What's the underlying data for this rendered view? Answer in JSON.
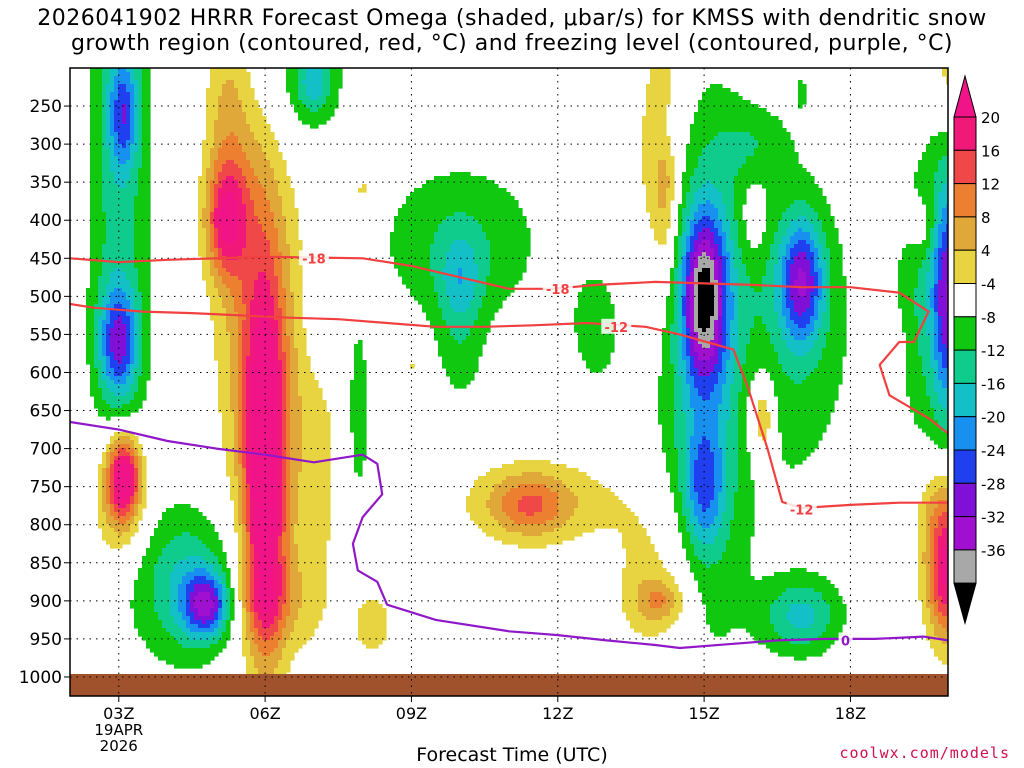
{
  "title_line1": "2026041902 HRRR Forecast Omega (shaded, μbar/s) for KMSS with dendritic snow",
  "title_line2": "growth region (contoured, red, °C) and freezing level (contoured, purple, °C)",
  "credit": "coolwx.com/models",
  "chart_data": {
    "type": "heatmap",
    "title": "2026041902 HRRR Forecast Omega (shaded, μbar/s) for KMSS with dendritic snow growth region (contoured, red, °C) and freezing level (contoured, purple, °C)",
    "xlabel": "Forecast Time (UTC)",
    "x_range_hours_utc": [
      2,
      20
    ],
    "x_ticks": [
      {
        "hour": 3,
        "label": "03Z",
        "sub": [
          "19APR",
          "2026"
        ]
      },
      {
        "hour": 6,
        "label": "06Z"
      },
      {
        "hour": 9,
        "label": "09Z"
      },
      {
        "hour": 12,
        "label": "12Z"
      },
      {
        "hour": 15,
        "label": "15Z"
      },
      {
        "hour": 18,
        "label": "18Z"
      }
    ],
    "y_axis": "pressure (hPa), reversed",
    "y_range": [
      1025,
      200
    ],
    "y_ticks": [
      250,
      300,
      350,
      400,
      450,
      500,
      550,
      600,
      650,
      700,
      750,
      800,
      850,
      900,
      950,
      1000
    ],
    "grid": true,
    "colorbar": {
      "labels": [
        "20",
        "16",
        "12",
        "8",
        "4",
        "-4",
        "-8",
        "-12",
        "-16",
        "-20",
        "-24",
        "-28",
        "-32",
        "-36"
      ],
      "bins": [
        {
          "lo": 24,
          "hi": 99,
          "color": "#f01488"
        },
        {
          "lo": 20,
          "hi": 24,
          "color": "#f01878"
        },
        {
          "lo": 16,
          "hi": 20,
          "color": "#f04848"
        },
        {
          "lo": 12,
          "hi": 16,
          "color": "#ec8030"
        },
        {
          "lo": 8,
          "hi": 12,
          "color": "#e0a838"
        },
        {
          "lo": 4,
          "hi": 8,
          "color": "#e8d440"
        },
        {
          "lo": -4,
          "hi": 4,
          "color": "#ffffff"
        },
        {
          "lo": -8,
          "hi": -4,
          "color": "#10c810"
        },
        {
          "lo": -12,
          "hi": -8,
          "color": "#10cc8c"
        },
        {
          "lo": -16,
          "hi": -12,
          "color": "#14c0c8"
        },
        {
          "lo": -20,
          "hi": -16,
          "color": "#1890f0"
        },
        {
          "lo": -24,
          "hi": -20,
          "color": "#2040f0"
        },
        {
          "lo": -28,
          "hi": -24,
          "color": "#8010d8"
        },
        {
          "lo": -32,
          "hi": -28,
          "color": "#a010d0"
        },
        {
          "lo": -36,
          "hi": -32,
          "color": "#a8a8a8"
        },
        {
          "lo": -99,
          "hi": -36,
          "color": "#000000"
        }
      ]
    },
    "omega_features": [
      {
        "hour": 3.1,
        "p": 735,
        "dh": 0.35,
        "dp": 55,
        "amp": 26
      },
      {
        "hour": 3.0,
        "p": 780,
        "dh": 0.55,
        "dp": 80,
        "amp": 10
      },
      {
        "hour": 3.0,
        "p": 560,
        "dh": 0.4,
        "dp": 70,
        "amp": -20
      },
      {
        "hour": 3.0,
        "p": 330,
        "dh": 0.65,
        "dp": 420,
        "amp": -10
      },
      {
        "hour": 3.1,
        "p": 260,
        "dh": 0.3,
        "dp": 70,
        "amp": -15
      },
      {
        "hour": 4.4,
        "p": 880,
        "dh": 1.0,
        "dp": 100,
        "amp": -13
      },
      {
        "hour": 4.8,
        "p": 905,
        "dh": 0.45,
        "dp": 40,
        "amp": -22
      },
      {
        "hour": 6.0,
        "p": 730,
        "dh": 0.42,
        "dp": 230,
        "amp": 30
      },
      {
        "hour": 6.1,
        "p": 900,
        "dh": 0.8,
        "dp": 60,
        "amp": 8
      },
      {
        "hour": 5.8,
        "p": 470,
        "dh": 0.8,
        "dp": 320,
        "amp": 12
      },
      {
        "hour": 5.2,
        "p": 400,
        "dh": 0.4,
        "dp": 70,
        "amp": 18
      },
      {
        "hour": 5.2,
        "p": 260,
        "dh": 0.45,
        "dp": 160,
        "amp": 7
      },
      {
        "hour": 7.0,
        "p": 700,
        "dh": 0.6,
        "dp": 250,
        "amp": 6
      },
      {
        "hour": 8.2,
        "p": 930,
        "dh": 0.5,
        "dp": 50,
        "amp": 6
      },
      {
        "hour": 8.0,
        "p": 360,
        "dh": 0.2,
        "dp": 25,
        "amp": 6
      },
      {
        "hour": 9.0,
        "p": 590,
        "dh": 0.15,
        "dp": 15,
        "amp": 5
      },
      {
        "hour": 7.2,
        "p": 520,
        "dh": 0.4,
        "dp": 90,
        "amp": -7
      },
      {
        "hour": 7.9,
        "p": 660,
        "dh": 0.3,
        "dp": 150,
        "amp": -6
      },
      {
        "hour": 6.5,
        "p": 200,
        "dh": 1.2,
        "dp": 120,
        "amp": -7
      },
      {
        "hour": 7.0,
        "p": 220,
        "dh": 0.35,
        "dp": 40,
        "amp": -10
      },
      {
        "hour": 10.0,
        "p": 430,
        "dh": 1.7,
        "dp": 110,
        "amp": -8
      },
      {
        "hour": 10.0,
        "p": 480,
        "dh": 0.45,
        "dp": 60,
        "amp": -9
      },
      {
        "hour": 11.6,
        "p": 770,
        "dh": 1.6,
        "dp": 55,
        "amp": 8
      },
      {
        "hour": 11.4,
        "p": 775,
        "dh": 0.75,
        "dp": 40,
        "amp": 9.5
      },
      {
        "hour": 10.0,
        "p": 580,
        "dh": 0.5,
        "dp": 70,
        "amp": -5
      },
      {
        "hour": 14.0,
        "p": 320,
        "dh": 0.7,
        "dp": 220,
        "amp": 6
      },
      {
        "hour": 14.2,
        "p": 330,
        "dh": 0.25,
        "dp": 130,
        "amp": 9
      },
      {
        "hour": 12.8,
        "p": 540,
        "dh": 0.6,
        "dp": 90,
        "amp": -6
      },
      {
        "hour": 14.0,
        "p": 870,
        "dh": 0.9,
        "dp": 120,
        "amp": 7
      },
      {
        "hour": 14.1,
        "p": 900,
        "dh": 0.5,
        "dp": 30,
        "amp": 9
      },
      {
        "hour": 15.0,
        "p": 600,
        "dh": 1.0,
        "dp": 380,
        "amp": -11
      },
      {
        "hour": 15.0,
        "p": 500,
        "dh": 0.45,
        "dp": 110,
        "amp": -29
      },
      {
        "hour": 15.0,
        "p": 750,
        "dh": 0.4,
        "dp": 80,
        "amp": -14
      },
      {
        "hour": 14.2,
        "p": 280,
        "dh": 0.25,
        "dp": 50,
        "amp": -6
      },
      {
        "hour": 16.1,
        "p": 650,
        "dh": 0.4,
        "dp": 90,
        "amp": 6
      },
      {
        "hour": 16.2,
        "p": 660,
        "dh": 0.2,
        "dp": 40,
        "amp": 9
      },
      {
        "hour": 16.8,
        "p": 550,
        "dh": 1.4,
        "dp": 220,
        "amp": -7
      },
      {
        "hour": 17.0,
        "p": 480,
        "dh": 0.45,
        "dp": 80,
        "amp": -23
      },
      {
        "hour": 17.0,
        "p": 920,
        "dh": 0.8,
        "dp": 50,
        "amp": -13
      },
      {
        "hour": 16.0,
        "p": 400,
        "dh": 0.3,
        "dp": 60,
        "amp": 5
      },
      {
        "hour": 16.0,
        "p": 300,
        "dh": 0.8,
        "dp": 50,
        "amp": -5
      },
      {
        "hour": 19.7,
        "p": 500,
        "dh": 0.7,
        "dp": 200,
        "amp": -10
      },
      {
        "hour": 20.0,
        "p": 500,
        "dh": 0.3,
        "dp": 150,
        "amp": -20
      },
      {
        "hour": 20.0,
        "p": 860,
        "dh": 0.45,
        "dp": 90,
        "amp": 26
      },
      {
        "hour": 19.8,
        "p": 770,
        "dh": 0.5,
        "dp": 60,
        "amp": 6
      },
      {
        "hour": 19.5,
        "p": 410,
        "dh": 0.3,
        "dp": 40,
        "amp": 6
      },
      {
        "hour": 19.0,
        "p": 580,
        "dh": 0.1,
        "dp": 40,
        "amp": 5
      },
      {
        "hour": 20.0,
        "p": 210,
        "dh": 0.3,
        "dp": 60,
        "amp": 6
      },
      {
        "hour": 17.0,
        "p": 230,
        "dh": 0.08,
        "dp": 30,
        "amp": -5
      }
    ],
    "contours": [
      {
        "label": "-18",
        "color": "#f04040",
        "label_points": [
          [
            7.0,
            450
          ],
          [
            12.0,
            490
          ]
        ],
        "points": [
          [
            2,
            450
          ],
          [
            3,
            455
          ],
          [
            4,
            452
          ],
          [
            5,
            450
          ],
          [
            6,
            448
          ],
          [
            7,
            449
          ],
          [
            8,
            450
          ],
          [
            9,
            460
          ],
          [
            10,
            475
          ],
          [
            11,
            490
          ],
          [
            11.9,
            490
          ],
          [
            12.8,
            485
          ],
          [
            14,
            481
          ],
          [
            15,
            483
          ],
          [
            16,
            485
          ],
          [
            17,
            488
          ],
          [
            18,
            488
          ],
          [
            19,
            495
          ],
          [
            19.6,
            520
          ],
          [
            19.3,
            560
          ],
          [
            19.0,
            560
          ],
          [
            18.6,
            590
          ],
          [
            18.8,
            630
          ],
          [
            19.6,
            660
          ],
          [
            20,
            680
          ]
        ]
      },
      {
        "label": "-12",
        "color": "#f04040",
        "label_points": [
          [
            13.2,
            540
          ],
          [
            17.0,
            780
          ]
        ],
        "points": [
          [
            2,
            510
          ],
          [
            2.5,
            515
          ],
          [
            3.5,
            520
          ],
          [
            4.5,
            522
          ],
          [
            5.5,
            525
          ],
          [
            6.5,
            528
          ],
          [
            7.5,
            530
          ],
          [
            8.5,
            535
          ],
          [
            9.5,
            540
          ],
          [
            10.5,
            540
          ],
          [
            11.5,
            538
          ],
          [
            12.6,
            535
          ],
          [
            13.8,
            540
          ],
          [
            14.5,
            550
          ],
          [
            15.6,
            570
          ],
          [
            15.9,
            620
          ],
          [
            16.3,
            700
          ],
          [
            16.6,
            770
          ],
          [
            17.0,
            778
          ],
          [
            18,
            774
          ],
          [
            19,
            771
          ],
          [
            20,
            771
          ]
        ]
      },
      {
        "label": "0",
        "color": "#9018c8",
        "label_points": [
          [
            17.9,
            952
          ]
        ],
        "points": [
          [
            2,
            665
          ],
          [
            3,
            675
          ],
          [
            4,
            690
          ],
          [
            5,
            700
          ],
          [
            6,
            708
          ],
          [
            7,
            718
          ],
          [
            7.6,
            712
          ],
          [
            8.0,
            708
          ],
          [
            8.3,
            720
          ],
          [
            8.4,
            760
          ],
          [
            8.0,
            790
          ],
          [
            7.8,
            825
          ],
          [
            7.9,
            860
          ],
          [
            8.3,
            875
          ],
          [
            8.5,
            905
          ],
          [
            9.5,
            925
          ],
          [
            11,
            940
          ],
          [
            12,
            945
          ],
          [
            13,
            952
          ],
          [
            14,
            958
          ],
          [
            14.5,
            962
          ],
          [
            15.5,
            957
          ],
          [
            16.5,
            952
          ],
          [
            17.5,
            950
          ],
          [
            18.5,
            950
          ],
          [
            19.5,
            947
          ],
          [
            20,
            952
          ]
        ]
      }
    ]
  }
}
